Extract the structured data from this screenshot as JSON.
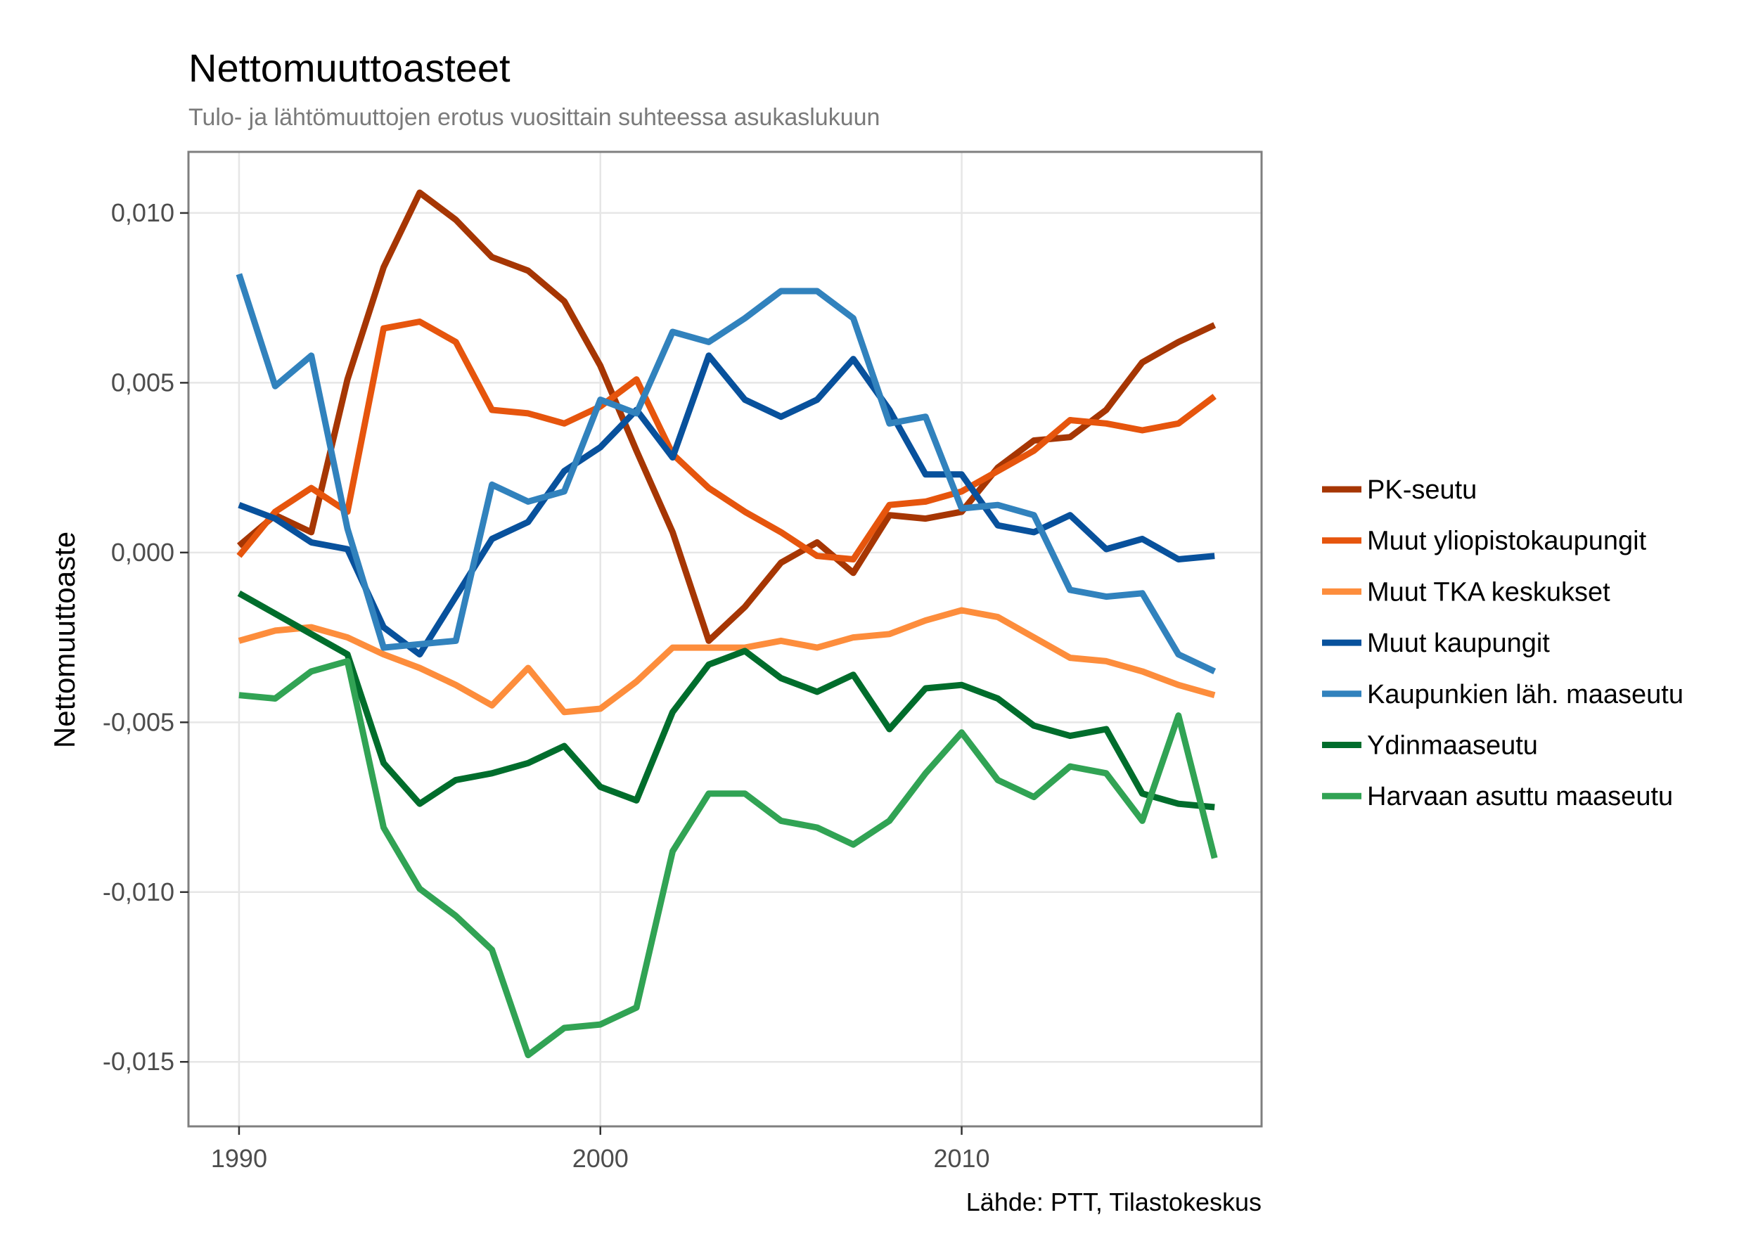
{
  "chart_data": {
    "type": "line",
    "title": "Nettomuuttoasteet",
    "subtitle": "Tulo- ja lähtömuuttojen erotus vuosittain suhteessa asukaslukuun",
    "xlabel": "",
    "ylabel": "Nettomuuttoaste",
    "caption": "Lähde: PTT, Tilastokeskus",
    "xlim": [
      1988.6,
      2018.3
    ],
    "ylim": [
      -0.0169,
      0.0118
    ],
    "x_ticks": [
      1990,
      2000,
      2010
    ],
    "x_tick_labels": [
      "1990",
      "2000",
      "2010"
    ],
    "y_ticks": [
      0.01,
      0.005,
      0.0,
      -0.005,
      -0.01,
      -0.015
    ],
    "y_tick_labels": [
      "0,010",
      "0,005",
      "0,000",
      "-0,005",
      "-0,010",
      "-0,015"
    ],
    "grid": true,
    "legend_position": "right",
    "x": [
      1990,
      1991,
      1992,
      1993,
      1994,
      1995,
      1996,
      1997,
      1998,
      1999,
      2000,
      2001,
      2002,
      2003,
      2004,
      2005,
      2006,
      2007,
      2008,
      2009,
      2010,
      2011,
      2012,
      2013,
      2014,
      2015,
      2016,
      2017
    ],
    "series": [
      {
        "name": "PK-seutu",
        "color": "#A63603",
        "values": [
          0.0002,
          0.0011,
          0.0006,
          0.0051,
          0.0084,
          0.0106,
          0.0098,
          0.0087,
          0.0083,
          0.0074,
          0.0055,
          0.003,
          0.0006,
          -0.0026,
          -0.0016,
          -0.0003,
          0.0003,
          -0.0006,
          0.0011,
          0.001,
          0.0012,
          0.0025,
          0.0033,
          0.0034,
          0.0042,
          0.0056,
          0.0062,
          0.0067
        ]
      },
      {
        "name": "Muut yliopistokaupungit",
        "color": "#E6550D",
        "values": [
          -0.0001,
          0.0012,
          0.0019,
          0.0012,
          0.0066,
          0.0068,
          0.0062,
          0.0042,
          0.0041,
          0.0038,
          0.0043,
          0.0051,
          0.0029,
          0.0019,
          0.0012,
          0.0006,
          -0.0001,
          -0.0002,
          0.0014,
          0.0015,
          0.0018,
          0.0024,
          0.003,
          0.0039,
          0.0038,
          0.0036,
          0.0038,
          0.0046
        ]
      },
      {
        "name": "Muut TKA keskukset",
        "color": "#FD8D3C",
        "values": [
          -0.0026,
          -0.0023,
          -0.0022,
          -0.0025,
          -0.003,
          -0.0034,
          -0.0039,
          -0.0045,
          -0.0034,
          -0.0047,
          -0.0046,
          -0.0038,
          -0.0028,
          -0.0028,
          -0.0028,
          -0.0026,
          -0.0028,
          -0.0025,
          -0.0024,
          -0.002,
          -0.0017,
          -0.0019,
          -0.0025,
          -0.0031,
          -0.0032,
          -0.0035,
          -0.0039,
          -0.0042
        ]
      },
      {
        "name": "Muut kaupungit",
        "color": "#08519C",
        "values": [
          0.0014,
          0.001,
          0.0003,
          0.0001,
          -0.0022,
          -0.003,
          -0.0013,
          0.0004,
          0.0009,
          0.0024,
          0.0031,
          0.0042,
          0.0028,
          0.0058,
          0.0045,
          0.004,
          0.0045,
          0.0057,
          0.0042,
          0.0023,
          0.0023,
          0.0008,
          0.0006,
          0.0011,
          0.0001,
          0.0004,
          -0.0002,
          -0.0001
        ]
      },
      {
        "name": "Kaupunkien läh. maaseutu",
        "color": "#3182BD",
        "values": [
          0.0082,
          0.0049,
          0.0058,
          0.0007,
          -0.0028,
          -0.0027,
          -0.0026,
          0.002,
          0.0015,
          0.0018,
          0.0045,
          0.0041,
          0.0065,
          0.0062,
          0.0069,
          0.0077,
          0.0077,
          0.0069,
          0.0038,
          0.004,
          0.0013,
          0.0014,
          0.0011,
          -0.0011,
          -0.0013,
          -0.0012,
          -0.003,
          -0.0035
        ]
      },
      {
        "name": "Ydinmaaseutu",
        "color": "#006D2C",
        "values": [
          -0.0012,
          -0.0018,
          -0.0024,
          -0.003,
          -0.0062,
          -0.0074,
          -0.0067,
          -0.0065,
          -0.0062,
          -0.0057,
          -0.0069,
          -0.0073,
          -0.0047,
          -0.0033,
          -0.0029,
          -0.0037,
          -0.0041,
          -0.0036,
          -0.0052,
          -0.004,
          -0.0039,
          -0.0043,
          -0.0051,
          -0.0054,
          -0.0052,
          -0.0071,
          -0.0074,
          -0.0075
        ]
      },
      {
        "name": "Harvaan asuttu maaseutu",
        "color": "#31A354",
        "values": [
          -0.0042,
          -0.0043,
          -0.0035,
          -0.0032,
          -0.0081,
          -0.0099,
          -0.0107,
          -0.0117,
          -0.0148,
          -0.014,
          -0.0139,
          -0.0134,
          -0.0088,
          -0.0071,
          -0.0071,
          -0.0079,
          -0.0081,
          -0.0086,
          -0.0079,
          -0.0065,
          -0.0053,
          -0.0067,
          -0.0072,
          -0.0063,
          -0.0065,
          -0.0079,
          -0.0048,
          -0.009
        ]
      }
    ]
  }
}
